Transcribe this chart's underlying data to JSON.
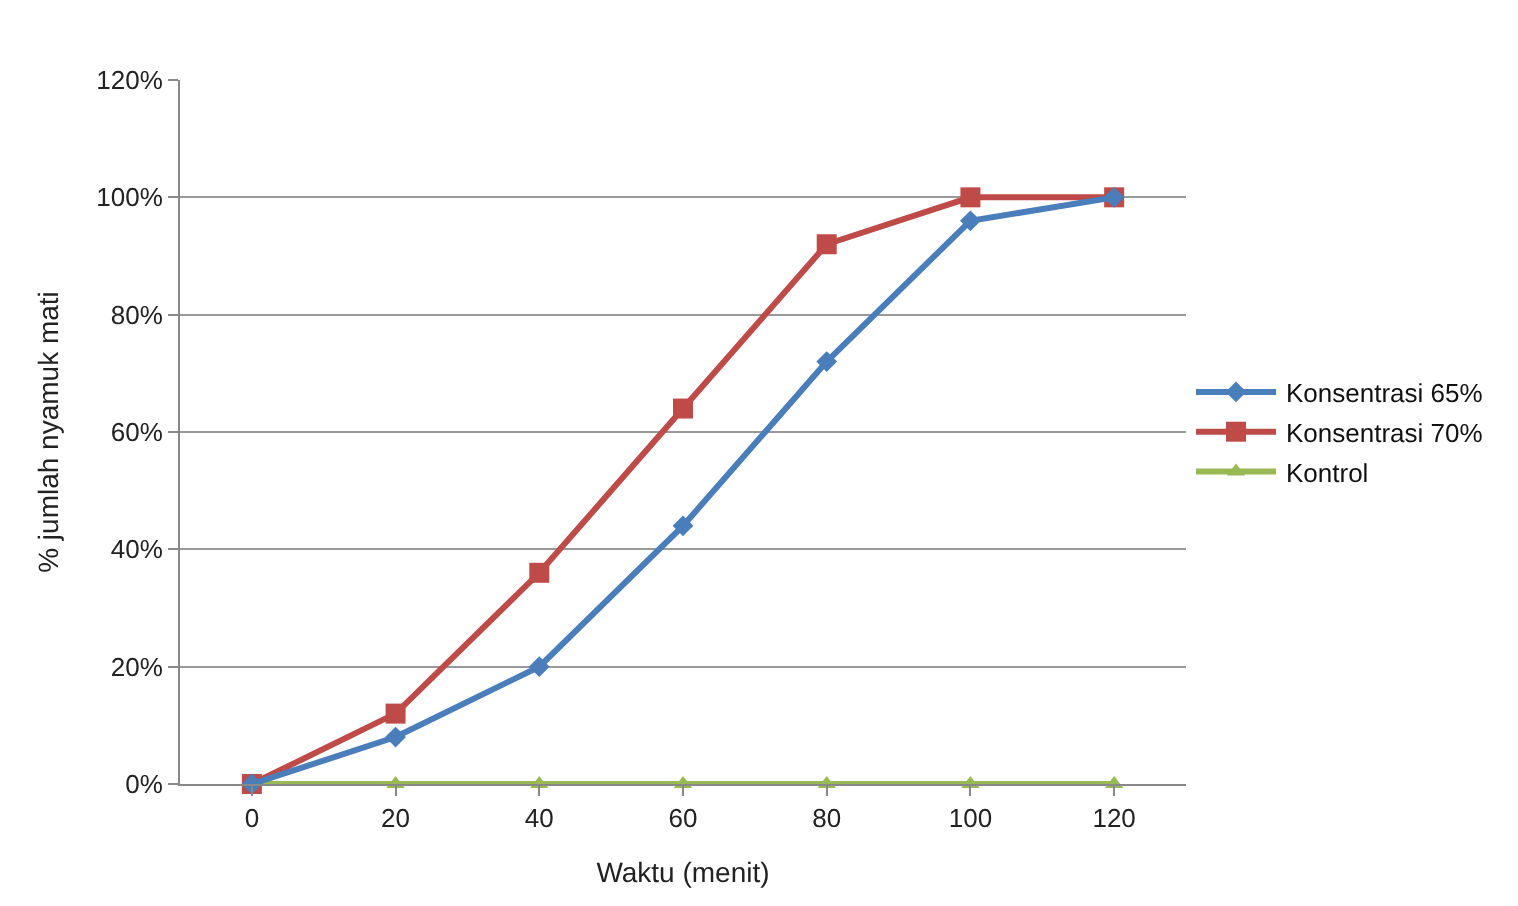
{
  "chart_data": {
    "type": "line",
    "xlabel": "Waktu (menit)",
    "ylabel": "% jumlah nyamuk mati",
    "categories": [
      "0",
      "20",
      "40",
      "60",
      "80",
      "100",
      "120"
    ],
    "series": [
      {
        "name": "Konsentrasi 65%",
        "color": "#4a7ebb",
        "marker": "diamond",
        "values": [
          0,
          8,
          20,
          44,
          72,
          96,
          100
        ]
      },
      {
        "name": "Konsentrasi 70%",
        "color": "#be4b48",
        "marker": "square",
        "values": [
          0,
          12,
          36,
          64,
          92,
          100,
          100
        ]
      },
      {
        "name": "Kontrol",
        "color": "#98b954",
        "marker": "triangle",
        "values": [
          0,
          0,
          0,
          0,
          0,
          0,
          0
        ]
      }
    ],
    "ylim": [
      0,
      120
    ],
    "yticks": [
      {
        "value": 0,
        "label": "0%"
      },
      {
        "value": 20,
        "label": "20%"
      },
      {
        "value": 40,
        "label": "40%"
      },
      {
        "value": 60,
        "label": "60%"
      },
      {
        "value": 80,
        "label": "80%"
      },
      {
        "value": 100,
        "label": "100%"
      },
      {
        "value": 120,
        "label": "120%"
      }
    ],
    "grid": "y",
    "legend": "right",
    "line_style": "solid"
  }
}
